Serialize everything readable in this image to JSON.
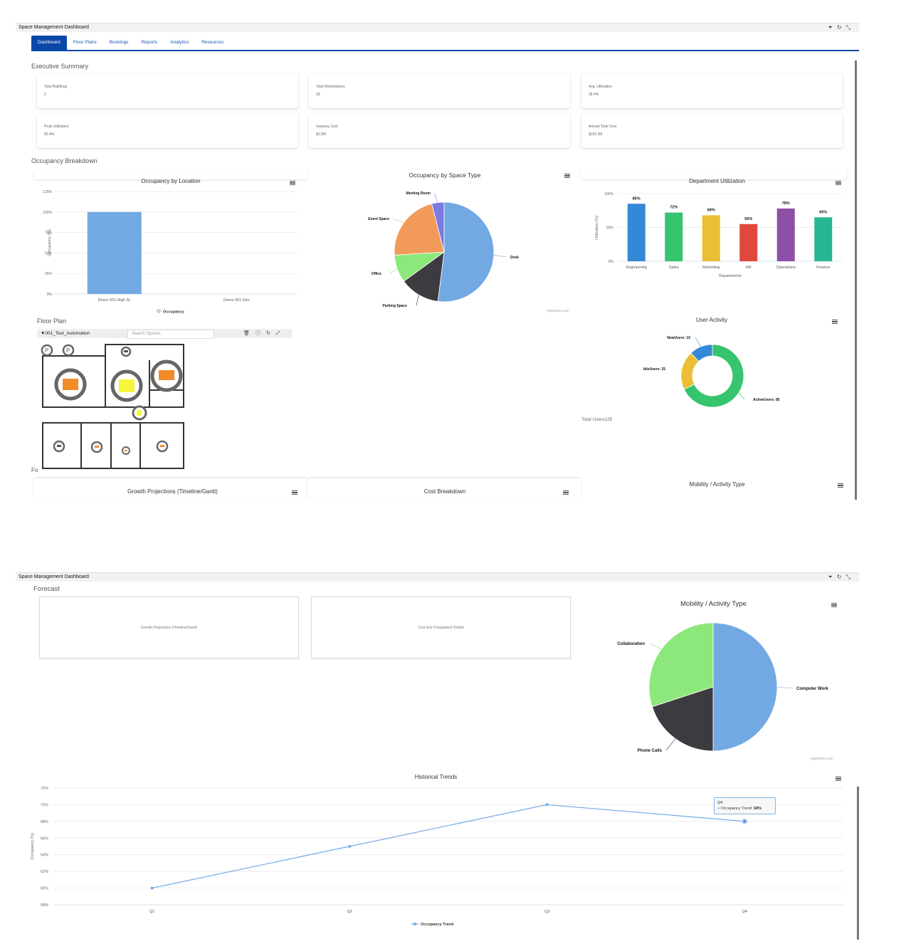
{
  "window": {
    "title": "Space Management Dashboard",
    "icons": [
      "filter-icon",
      "refresh-icon",
      "collapse-icon"
    ]
  },
  "tabs": [
    {
      "label": "Dashboard",
      "active": true
    },
    {
      "label": "Floor Plans"
    },
    {
      "label": "Bookings"
    },
    {
      "label": "Reports"
    },
    {
      "label": "Analytics"
    },
    {
      "label": "Resources"
    }
  ],
  "executive_summary": {
    "title": "Executive Summary",
    "cards": [
      {
        "label": "Total Buildings",
        "value": "2"
      },
      {
        "label": "Total Workstations",
        "value": "28"
      },
      {
        "label": "Avg. Utilization",
        "value": "28.4%"
      },
      {
        "label": "Peak Utilization",
        "value": "82.4%"
      },
      {
        "label": "Vacancy Cost",
        "value": "$1.8M"
      },
      {
        "label": "Annual Total Cost",
        "value": "$190.3M"
      }
    ]
  },
  "occupancy_breakdown": {
    "title": "Occupancy Breakdown"
  },
  "floor_plan": {
    "title": "Floor Plan",
    "floor_name": "▼001_Test_Automation",
    "search_placeholder": "Search Spaces",
    "toolbar_icons": [
      "trash-icon",
      "info-icon",
      "refresh-icon",
      "expand-icon"
    ]
  },
  "forecast_truncated": "Fo",
  "lower_cards": {
    "growth": "Growth Projections (Timeline/Gantt)",
    "cost": "Cost Breakdown",
    "mobility": "Mobility / Activity Type"
  },
  "forecast": {
    "title": "Forecast",
    "cards": [
      "Growth Projections (Timeline/Gantt)",
      "Cost and Chargeback Details"
    ]
  },
  "total_users": "Total Users125",
  "credits": "Highcharts.com",
  "tooltip": {
    "category": "Q4",
    "series": "Occupancy Trend: ",
    "value": "68%"
  },
  "chart_data": [
    {
      "type": "bar",
      "title": "Occupancy by Location",
      "categories": [
        "Demo 501 High St.",
        "Demo 501 Dev"
      ],
      "series": [
        {
          "name": "Occupancy",
          "values": [
            100,
            0
          ]
        }
      ],
      "ylabel": "Occupancy (%)",
      "ylim": [
        0,
        125
      ],
      "yticks": [
        "0%",
        "25%",
        "50%",
        "75%",
        "100%",
        "125%"
      ],
      "color": "#72a9e3",
      "legend": "bottom",
      "grid": true
    },
    {
      "type": "pie",
      "title": "Occupancy by Space Type",
      "slices": [
        {
          "label": "Desk",
          "value": 52,
          "color": "#72a9e3"
        },
        {
          "label": "Parking Space",
          "value": 13,
          "color": "#3b3b40"
        },
        {
          "label": "Office",
          "value": 9,
          "color": "#8ce87a"
        },
        {
          "label": "Event Space",
          "value": 22,
          "color": "#f29a5a"
        },
        {
          "label": "Meeting Room",
          "value": 4,
          "color": "#7b7be3"
        }
      ]
    },
    {
      "type": "bar",
      "title": "Department Utilization",
      "categories": [
        "Engineering",
        "Sales",
        "Marketing",
        "HR",
        "Operations",
        "Finance"
      ],
      "values": [
        85,
        72,
        68,
        55,
        78,
        65
      ],
      "data_labels": [
        "85%",
        "72%",
        "68%",
        "55%",
        "78%",
        "65%"
      ],
      "colors": [
        "#3389d6",
        "#37c46e",
        "#ecbd36",
        "#e0483c",
        "#8e4fa6",
        "#28b594"
      ],
      "xlabel": "Departments",
      "ylabel": "Utilization (%)",
      "ylim": [
        0,
        100
      ],
      "yticks": [
        "0%",
        "50%",
        "100%"
      ],
      "grid": true
    },
    {
      "type": "pie",
      "donut": true,
      "title": "User Activity",
      "slices": [
        {
          "label": "ActiveUsers: 85",
          "value": 85,
          "color": "#37c46e"
        },
        {
          "label": "IdleUsers: 25",
          "value": 25,
          "color": "#ecbd36"
        },
        {
          "label": "NewUsers: 15",
          "value": 15,
          "color": "#3389d6"
        }
      ]
    },
    {
      "type": "pie",
      "title": "Mobility / Activity Type",
      "slices": [
        {
          "label": "Computer Work",
          "value": 50,
          "color": "#72a9e3"
        },
        {
          "label": "Phone Calls",
          "value": 20,
          "color": "#3b3b40"
        },
        {
          "label": "Collaboration",
          "value": 30,
          "color": "#8ce87a"
        }
      ]
    },
    {
      "type": "line",
      "title": "Historical Trends",
      "categories": [
        "Q1",
        "Q2",
        "Q3",
        "Q4"
      ],
      "series": [
        {
          "name": "Occupancy Trend",
          "values": [
            60,
            65,
            70,
            68
          ]
        }
      ],
      "ylabel": "Occupancy (%)",
      "ylim": [
        58,
        72
      ],
      "yticks": [
        "58%",
        "60%",
        "62%",
        "64%",
        "66%",
        "68%",
        "70%",
        "72%"
      ],
      "color": "#72a9e3",
      "legend": "bottom",
      "grid": true
    }
  ]
}
